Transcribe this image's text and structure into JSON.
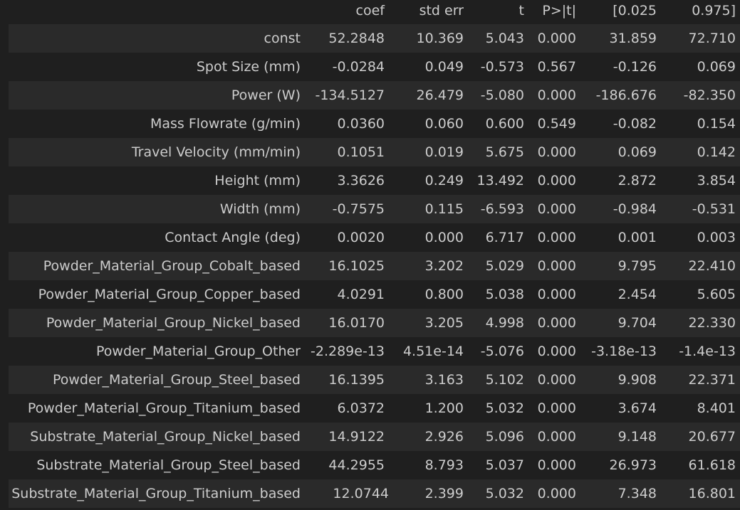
{
  "table": {
    "headers": [
      "",
      "coef",
      "std err",
      "t",
      "P>|t|",
      "[0.025",
      "0.975]"
    ],
    "rows": [
      [
        "const",
        "52.2848",
        "10.369",
        "5.043",
        "0.000",
        "31.859",
        "72.710"
      ],
      [
        "Spot Size (mm)",
        "-0.0284",
        "0.049",
        "-0.573",
        "0.567",
        "-0.126",
        "0.069"
      ],
      [
        "Power (W)",
        "-134.5127",
        "26.479",
        "-5.080",
        "0.000",
        "-186.676",
        "-82.350"
      ],
      [
        "Mass Flowrate (g/min)",
        "0.0360",
        "0.060",
        "0.600",
        "0.549",
        "-0.082",
        "0.154"
      ],
      [
        "Travel Velocity (mm/min)",
        "0.1051",
        "0.019",
        "5.675",
        "0.000",
        "0.069",
        "0.142"
      ],
      [
        "Height (mm)",
        "3.3626",
        "0.249",
        "13.492",
        "0.000",
        "2.872",
        "3.854"
      ],
      [
        "Width (mm)",
        "-0.7575",
        "0.115",
        "-6.593",
        "0.000",
        "-0.984",
        "-0.531"
      ],
      [
        "Contact Angle (deg)",
        "0.0020",
        "0.000",
        "6.717",
        "0.000",
        "0.001",
        "0.003"
      ],
      [
        "Powder_Material_Group_Cobalt_based",
        "16.1025",
        "3.202",
        "5.029",
        "0.000",
        "9.795",
        "22.410"
      ],
      [
        "Powder_Material_Group_Copper_based",
        "4.0291",
        "0.800",
        "5.038",
        "0.000",
        "2.454",
        "5.605"
      ],
      [
        "Powder_Material_Group_Nickel_based",
        "16.0170",
        "3.205",
        "4.998",
        "0.000",
        "9.704",
        "22.330"
      ],
      [
        "Powder_Material_Group_Other",
        "-2.289e-13",
        "4.51e-14",
        "-5.076",
        "0.000",
        "-3.18e-13",
        "-1.4e-13"
      ],
      [
        "Powder_Material_Group_Steel_based",
        "16.1395",
        "3.163",
        "5.102",
        "0.000",
        "9.908",
        "22.371"
      ],
      [
        "Powder_Material_Group_Titanium_based",
        "6.0372",
        "1.200",
        "5.032",
        "0.000",
        "3.674",
        "8.401"
      ],
      [
        "Substrate_Material_Group_Nickel_based",
        "14.9122",
        "2.926",
        "5.096",
        "0.000",
        "9.148",
        "20.677"
      ],
      [
        "Substrate_Material_Group_Steel_based",
        "44.2955",
        "8.793",
        "5.037",
        "0.000",
        "26.973",
        "61.618"
      ],
      [
        "Substrate_Material_Group_Titanium_based",
        "12.0744",
        "2.399",
        "5.032",
        "0.000",
        "7.348",
        "16.801"
      ]
    ]
  },
  "colors": {
    "background": "#1f1f1f",
    "row_stripe": "#2a2a2a",
    "text": "#cccccc"
  }
}
